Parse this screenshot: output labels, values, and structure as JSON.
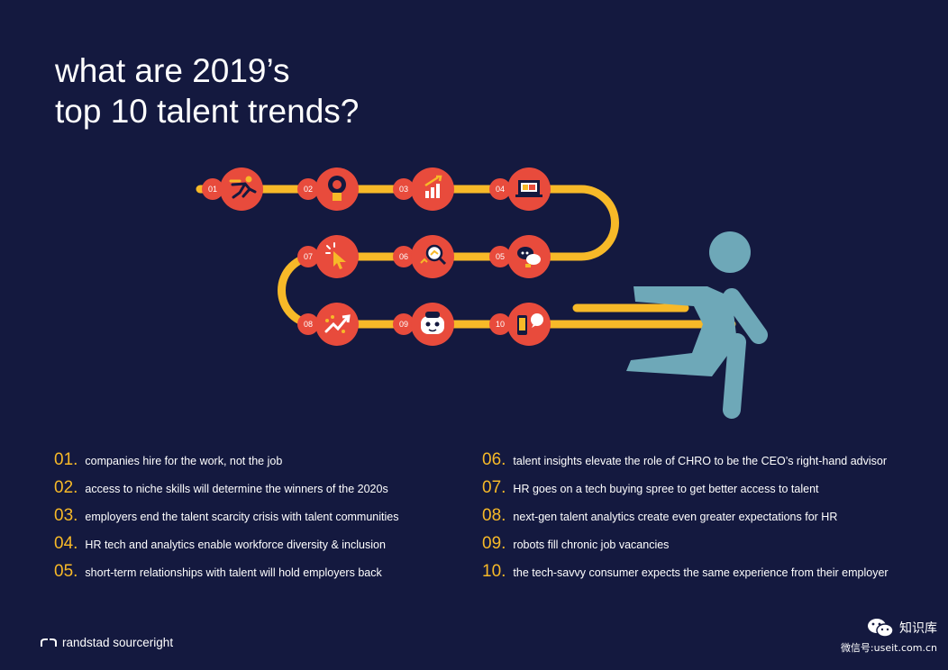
{
  "title": {
    "line1": "what are 2019’s",
    "line2": "top 10 talent trends?"
  },
  "colors": {
    "background": "#14193f",
    "accent_yellow": "#f7b928",
    "node_red": "#e84b3c",
    "runner_teal": "#6ea8b8"
  },
  "path_nodes": [
    {
      "num": "01",
      "icon": "running-person-icon"
    },
    {
      "num": "02",
      "icon": "lightbulb-icon"
    },
    {
      "num": "03",
      "icon": "rising-bar-chart-icon"
    },
    {
      "num": "04",
      "icon": "laptop-icon"
    },
    {
      "num": "05",
      "icon": "chat-bubbles-icon"
    },
    {
      "num": "06",
      "icon": "magnifier-analytics-icon"
    },
    {
      "num": "07",
      "icon": "cursor-click-icon"
    },
    {
      "num": "08",
      "icon": "growth-arrow-icon"
    },
    {
      "num": "09",
      "icon": "robot-face-icon"
    },
    {
      "num": "10",
      "icon": "smartphone-chat-icon"
    }
  ],
  "trends_left": [
    {
      "num": "01.",
      "text": "companies hire for the work, not the job"
    },
    {
      "num": "02.",
      "text": "access to niche skills will determine the winners of the 2020s"
    },
    {
      "num": "03.",
      "text": "employers end the talent scarcity crisis with talent communities"
    },
    {
      "num": "04.",
      "text": "HR tech and analytics enable workforce diversity & inclusion"
    },
    {
      "num": "05.",
      "text": "short-term relationships with talent will hold employers back"
    }
  ],
  "trends_right": [
    {
      "num": "06.",
      "text": "talent insights elevate the role of CHRO to be the CEO’s right-hand advisor"
    },
    {
      "num": "07.",
      "text": "HR goes on a tech buying spree to get better access to talent"
    },
    {
      "num": "08.",
      "text": "next-gen talent analytics create even greater expectations for HR"
    },
    {
      "num": "09.",
      "text": "robots fill chronic job vacancies"
    },
    {
      "num": "10.",
      "text": "the tech-savvy consumer expects the same experience from their employer"
    }
  ],
  "brand": {
    "name": "randstad sourceright",
    "icon": "randstad-logo-icon"
  },
  "watermark": {
    "name": "知识库",
    "sub": "微信号:useit.com.cn",
    "icon": "wechat-icon"
  }
}
